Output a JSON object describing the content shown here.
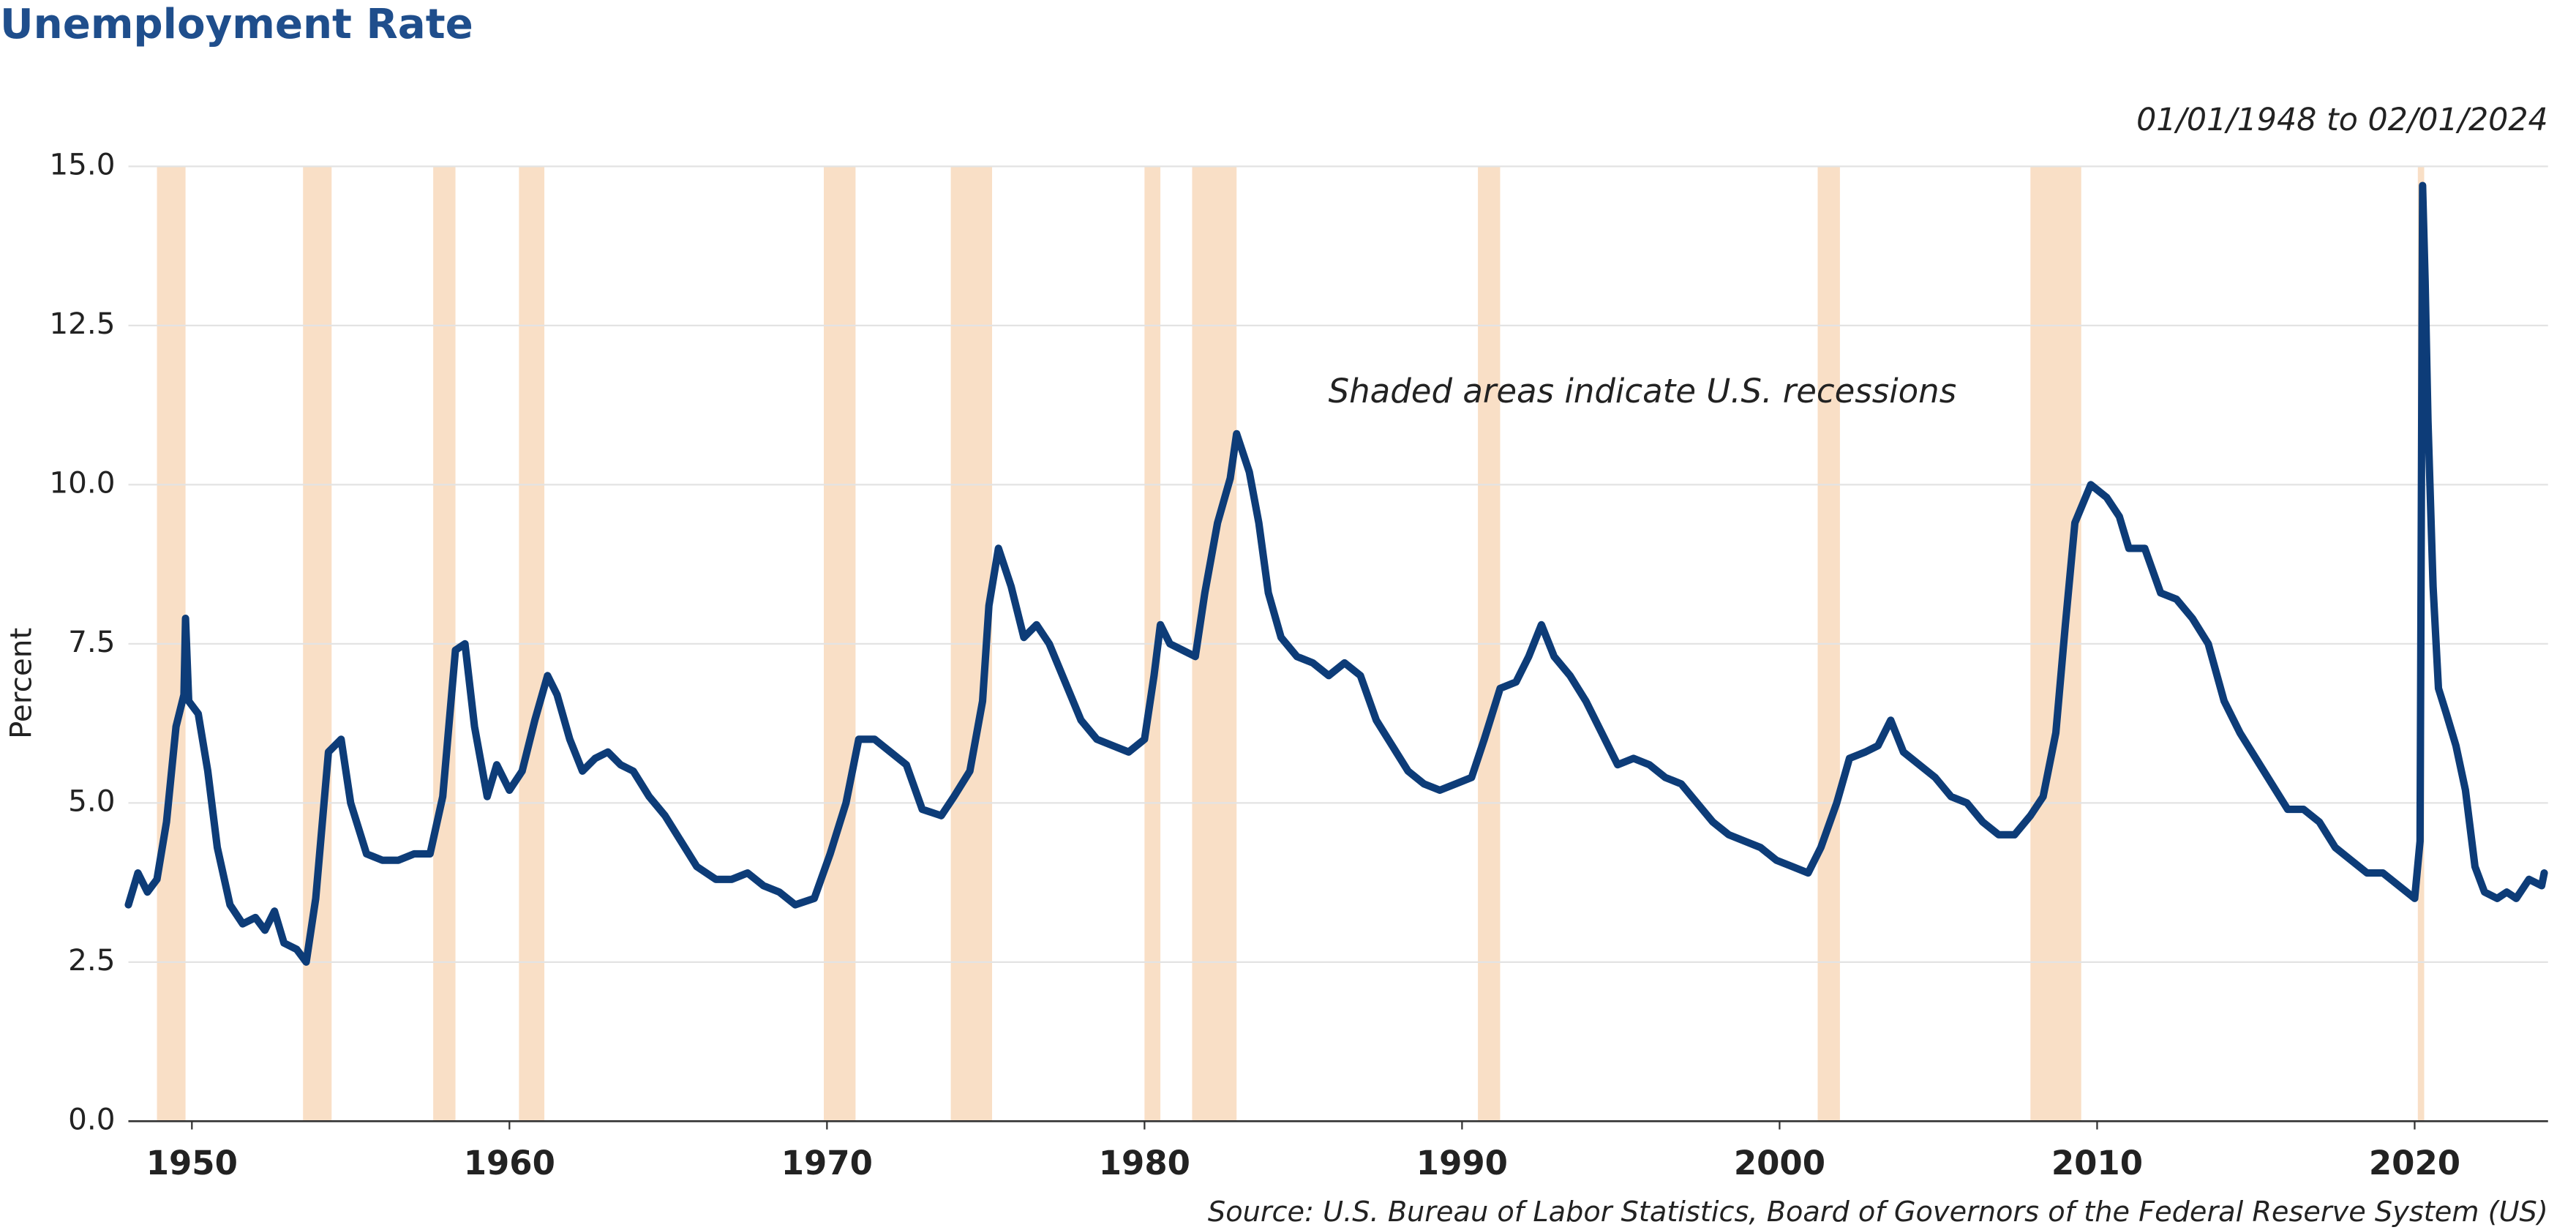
{
  "chart_data": {
    "type": "line",
    "title": "Unemployment Rate",
    "subtitle": "01/01/1948 to 02/01/2024",
    "annotation": "Shaded areas indicate U.S. recessions",
    "source": "Source: U.S. Bureau of Labor Statistics, Board of Governors of the Federal Reserve System (US)",
    "ylabel": "Percent",
    "xlim": [
      1948,
      2024.2
    ],
    "xticks": [
      1950,
      1960,
      1970,
      1980,
      1990,
      2000,
      2010,
      2020
    ],
    "ylim": [
      0,
      15
    ],
    "yticks": [
      {
        "value": 0,
        "label": "0.0"
      },
      {
        "value": 2.5,
        "label": "2.5"
      },
      {
        "value": 5,
        "label": "5.0"
      },
      {
        "value": 7.5,
        "label": "7.5"
      },
      {
        "value": 10,
        "label": "10.0"
      },
      {
        "value": 12.5,
        "label": "12.5"
      },
      {
        "value": 15,
        "label": "15.0"
      }
    ],
    "grid": true,
    "recession_color": "#f9dfc6",
    "recessions": [
      [
        1948.9,
        1949.8
      ],
      [
        1953.5,
        1954.4
      ],
      [
        1957.6,
        1958.3
      ],
      [
        1960.3,
        1961.1
      ],
      [
        1969.9,
        1970.9
      ],
      [
        1973.9,
        1975.2
      ],
      [
        1980.0,
        1980.5
      ],
      [
        1981.5,
        1982.9
      ],
      [
        1990.5,
        1991.2
      ],
      [
        2001.2,
        2001.9
      ],
      [
        2007.9,
        2009.5
      ],
      [
        2020.1,
        2020.3
      ]
    ],
    "x": [
      1948.0,
      1948.3,
      1948.6,
      1948.9,
      1949.2,
      1949.5,
      1949.75,
      1949.8,
      1949.9,
      1950.2,
      1950.5,
      1950.8,
      1951.2,
      1951.6,
      1952.0,
      1952.3,
      1952.6,
      1952.9,
      1953.3,
      1953.6,
      1953.9,
      1954.3,
      1954.7,
      1955.0,
      1955.5,
      1956.0,
      1956.5,
      1957.0,
      1957.5,
      1957.9,
      1958.3,
      1958.6,
      1958.9,
      1959.3,
      1959.6,
      1960.0,
      1960.4,
      1960.8,
      1961.2,
      1961.5,
      1961.9,
      1962.3,
      1962.7,
      1963.1,
      1963.5,
      1963.9,
      1964.4,
      1964.9,
      1965.4,
      1965.9,
      1966.5,
      1967.0,
      1967.5,
      1968.0,
      1968.5,
      1969.0,
      1969.6,
      1970.1,
      1970.6,
      1971.0,
      1971.5,
      1972.0,
      1972.5,
      1973.0,
      1973.6,
      1974.0,
      1974.5,
      1974.9,
      1975.1,
      1975.4,
      1975.8,
      1976.2,
      1976.6,
      1977.0,
      1977.5,
      1978.0,
      1978.5,
      1979.0,
      1979.5,
      1980.0,
      1980.3,
      1980.5,
      1980.8,
      1981.2,
      1981.6,
      1981.9,
      1982.3,
      1982.7,
      1982.9,
      1983.3,
      1983.6,
      1983.9,
      1984.3,
      1984.8,
      1985.3,
      1985.8,
      1986.3,
      1986.8,
      1987.3,
      1987.8,
      1988.3,
      1988.8,
      1989.3,
      1989.8,
      1990.3,
      1990.7,
      1991.2,
      1991.7,
      1992.1,
      1992.5,
      1992.9,
      1993.4,
      1993.9,
      1994.4,
      1994.9,
      1995.4,
      1995.9,
      1996.4,
      1996.9,
      1997.4,
      1997.9,
      1998.4,
      1998.9,
      1999.4,
      1999.9,
      2000.4,
      2000.9,
      2001.3,
      2001.8,
      2002.2,
      2002.7,
      2003.1,
      2003.5,
      2003.9,
      2004.4,
      2004.9,
      2005.4,
      2005.9,
      2006.4,
      2006.9,
      2007.4,
      2007.9,
      2008.3,
      2008.7,
      2009.0,
      2009.3,
      2009.8,
      2010.3,
      2010.7,
      2011.0,
      2011.5,
      2012.0,
      2012.5,
      2013.0,
      2013.5,
      2014.0,
      2014.5,
      2015.0,
      2015.5,
      2016.0,
      2016.5,
      2017.0,
      2017.5,
      2018.0,
      2018.5,
      2019.0,
      2019.5,
      2020.0,
      2020.17,
      2020.25,
      2020.33,
      2020.42,
      2020.58,
      2020.75,
      2021.0,
      2021.3,
      2021.6,
      2021.9,
      2022.2,
      2022.6,
      2022.9,
      2023.2,
      2023.6,
      2024.0,
      2024.08
    ],
    "series": [
      {
        "name": "Unemployment Rate",
        "color": "#0d3c78",
        "values": [
          3.4,
          3.9,
          3.6,
          3.8,
          4.7,
          6.2,
          6.7,
          7.9,
          6.6,
          6.4,
          5.5,
          4.3,
          3.4,
          3.1,
          3.2,
          3.0,
          3.3,
          2.8,
          2.7,
          2.5,
          3.5,
          5.8,
          6.0,
          5.0,
          4.2,
          4.1,
          4.1,
          4.2,
          4.2,
          5.1,
          7.4,
          7.5,
          6.2,
          5.1,
          5.6,
          5.2,
          5.5,
          6.3,
          7.0,
          6.7,
          6.0,
          5.5,
          5.7,
          5.8,
          5.6,
          5.5,
          5.1,
          4.8,
          4.4,
          4.0,
          3.8,
          3.8,
          3.9,
          3.7,
          3.6,
          3.4,
          3.5,
          4.2,
          5.0,
          6.0,
          6.0,
          5.8,
          5.6,
          4.9,
          4.8,
          5.1,
          5.5,
          6.6,
          8.1,
          9.0,
          8.4,
          7.6,
          7.8,
          7.5,
          6.9,
          6.3,
          6.0,
          5.9,
          5.8,
          6.0,
          7.0,
          7.8,
          7.5,
          7.4,
          7.3,
          8.3,
          9.4,
          10.1,
          10.8,
          10.2,
          9.4,
          8.3,
          7.6,
          7.3,
          7.2,
          7.0,
          7.2,
          7.0,
          6.3,
          5.9,
          5.5,
          5.3,
          5.2,
          5.3,
          5.4,
          6.0,
          6.8,
          6.9,
          7.3,
          7.8,
          7.3,
          7.0,
          6.6,
          6.1,
          5.6,
          5.7,
          5.6,
          5.4,
          5.3,
          5.0,
          4.7,
          4.5,
          4.4,
          4.3,
          4.1,
          4.0,
          3.9,
          4.3,
          5.0,
          5.7,
          5.8,
          5.9,
          6.3,
          5.8,
          5.6,
          5.4,
          5.1,
          5.0,
          4.7,
          4.5,
          4.5,
          4.8,
          5.1,
          6.1,
          7.8,
          9.4,
          10.0,
          9.8,
          9.5,
          9.0,
          9.0,
          8.3,
          8.2,
          7.9,
          7.5,
          6.6,
          6.1,
          5.7,
          5.3,
          4.9,
          4.9,
          4.7,
          4.3,
          4.1,
          3.9,
          3.9,
          3.7,
          3.5,
          4.4,
          14.7,
          13.2,
          11.0,
          8.4,
          6.8,
          6.4,
          5.9,
          5.2,
          4.0,
          3.6,
          3.5,
          3.6,
          3.5,
          3.8,
          3.7,
          3.9
        ]
      }
    ]
  }
}
